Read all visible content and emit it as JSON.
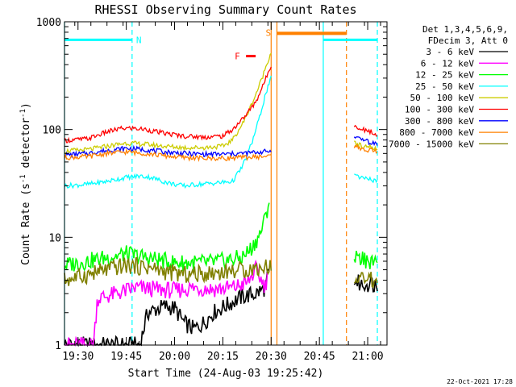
{
  "chart_data": {
    "type": "line",
    "title": "RHESSI Observing Summary Count Rates",
    "xlabel": "Start Time (24-Aug-03 19:25:42)",
    "ylabel": "Count Rate (s",
    "ylabel_sup1": "-1",
    "ylabel_mid": " detector",
    "ylabel_sup2": "-1",
    "ylabel_end": ")",
    "yscale": "log",
    "ylim": [
      1,
      1000
    ],
    "xlim": [
      19.43,
      21.1
    ],
    "y_ticks": [
      {
        "value": 1,
        "label": "1"
      },
      {
        "value": 10,
        "label": "10"
      },
      {
        "value": 100,
        "label": "100"
      },
      {
        "value": 1000,
        "label": "1000"
      }
    ],
    "x_ticks": [
      {
        "value": 19.5,
        "label": "19:30"
      },
      {
        "value": 19.75,
        "label": "19:45"
      },
      {
        "value": 20.0,
        "label": "20:00"
      },
      {
        "value": 20.25,
        "label": "20:15"
      },
      {
        "value": 20.5,
        "label": "20:30"
      },
      {
        "value": 20.75,
        "label": "20:45"
      },
      {
        "value": 21.0,
        "label": "21:00"
      }
    ],
    "legend_header": [
      "Det 1,3,4,5,6,9,",
      "FDecim 3, Att 0"
    ],
    "series": [
      {
        "name": "3 - 6 keV",
        "label": "3 - 6 keV",
        "color": "#000000",
        "points": [
          [
            19.43,
            1.0
          ],
          [
            19.82,
            1.0
          ],
          [
            19.86,
            2.0
          ],
          [
            19.95,
            2.3
          ],
          [
            20.0,
            2.2
          ],
          [
            20.05,
            1.6
          ],
          [
            20.1,
            1.4
          ],
          [
            20.15,
            1.6
          ],
          [
            20.2,
            2.0
          ],
          [
            20.28,
            2.4
          ],
          [
            20.35,
            2.8
          ],
          [
            20.42,
            3.0
          ],
          [
            20.47,
            3.4
          ],
          [
            20.485,
            4.5
          ]
        ],
        "points_b": [
          [
            20.93,
            4.0
          ],
          [
            20.97,
            3.6
          ],
          [
            21.02,
            3.8
          ],
          [
            21.05,
            3.5
          ]
        ]
      },
      {
        "name": "6 - 12 keV",
        "label": "6 - 12 keV",
        "color": "#ff00ff",
        "points": [
          [
            19.43,
            1.0
          ],
          [
            19.58,
            1.0
          ],
          [
            19.6,
            2.7
          ],
          [
            19.7,
            3.0
          ],
          [
            19.8,
            3.4
          ],
          [
            19.9,
            3.3
          ],
          [
            20.0,
            3.2
          ],
          [
            20.1,
            3.4
          ],
          [
            20.2,
            3.3
          ],
          [
            20.3,
            3.4
          ],
          [
            20.38,
            3.8
          ],
          [
            20.42,
            5.0
          ],
          [
            20.45,
            4.0
          ],
          [
            20.47,
            3.5
          ],
          [
            20.48,
            4.2
          ]
        ],
        "points_b": []
      },
      {
        "name": "12 - 25 keV",
        "label": "12 - 25 keV",
        "color": "#00ff00",
        "points": [
          [
            19.43,
            5.5
          ],
          [
            19.55,
            6.0
          ],
          [
            19.65,
            6.5
          ],
          [
            19.75,
            7.0
          ],
          [
            19.85,
            6.5
          ],
          [
            20.0,
            5.8
          ],
          [
            20.15,
            5.8
          ],
          [
            20.25,
            6.0
          ],
          [
            20.35,
            6.5
          ],
          [
            20.4,
            8.0
          ],
          [
            20.44,
            10.5
          ],
          [
            20.47,
            15
          ],
          [
            20.49,
            22
          ]
        ],
        "points_b": [
          [
            20.93,
            6.5
          ],
          [
            20.97,
            6.2
          ],
          [
            21.02,
            6.0
          ],
          [
            21.05,
            6.0
          ]
        ]
      },
      {
        "name": "25 - 50 keV",
        "label": "25 - 50 keV",
        "color": "#00ffff",
        "points": [
          [
            19.43,
            30
          ],
          [
            19.55,
            31
          ],
          [
            19.65,
            33
          ],
          [
            19.75,
            36
          ],
          [
            19.82,
            37
          ],
          [
            19.88,
            36
          ],
          [
            19.94,
            33
          ],
          [
            20.0,
            31
          ],
          [
            20.05,
            30
          ],
          [
            20.12,
            31
          ],
          [
            20.22,
            32
          ],
          [
            20.3,
            33
          ],
          [
            20.35,
            45
          ],
          [
            20.4,
            75
          ],
          [
            20.44,
            130
          ],
          [
            20.47,
            210
          ],
          [
            20.5,
            300
          ]
        ],
        "points_b": [
          [
            20.93,
            37
          ],
          [
            20.97,
            35
          ],
          [
            21.02,
            34
          ],
          [
            21.05,
            33
          ]
        ]
      },
      {
        "name": "50 - 100 keV",
        "label": "50 - 100 keV",
        "color": "#cccc00",
        "points": [
          [
            19.43,
            63
          ],
          [
            19.55,
            65
          ],
          [
            19.65,
            70
          ],
          [
            19.75,
            75
          ],
          [
            19.85,
            73
          ],
          [
            19.95,
            70
          ],
          [
            20.05,
            68
          ],
          [
            20.15,
            68
          ],
          [
            20.25,
            70
          ],
          [
            20.3,
            80
          ],
          [
            20.36,
            120
          ],
          [
            20.41,
            190
          ],
          [
            20.45,
            290
          ],
          [
            20.48,
            420
          ],
          [
            20.5,
            520
          ]
        ],
        "points_b": [
          [
            20.93,
            75
          ],
          [
            20.97,
            70
          ],
          [
            21.02,
            68
          ],
          [
            21.05,
            66
          ]
        ]
      },
      {
        "name": "100 - 300 keV",
        "label": "100 - 300 keV",
        "color": "#ff0000",
        "points": [
          [
            19.43,
            79
          ],
          [
            19.55,
            82
          ],
          [
            19.65,
            95
          ],
          [
            19.72,
            102
          ],
          [
            19.78,
            103
          ],
          [
            19.85,
            100
          ],
          [
            19.95,
            92
          ],
          [
            20.05,
            87
          ],
          [
            20.15,
            85
          ],
          [
            20.25,
            87
          ],
          [
            20.3,
            100
          ],
          [
            20.36,
            130
          ],
          [
            20.42,
            180
          ],
          [
            20.46,
            260
          ],
          [
            20.49,
            360
          ],
          [
            20.5,
            400
          ]
        ],
        "points_b": [
          [
            20.93,
            105
          ],
          [
            20.97,
            100
          ],
          [
            21.02,
            95
          ],
          [
            21.05,
            90
          ]
        ]
      },
      {
        "name": "300 - 800 keV",
        "label": "300 - 800 keV",
        "color": "#0000ff",
        "points": [
          [
            19.43,
            58
          ],
          [
            19.55,
            60
          ],
          [
            19.65,
            64
          ],
          [
            19.75,
            67
          ],
          [
            19.85,
            65
          ],
          [
            19.95,
            62
          ],
          [
            20.05,
            60
          ],
          [
            20.15,
            59
          ],
          [
            20.25,
            59
          ],
          [
            20.35,
            60
          ],
          [
            20.45,
            62
          ],
          [
            20.5,
            63
          ]
        ],
        "points_b": [
          [
            20.93,
            85
          ],
          [
            20.97,
            80
          ],
          [
            21.02,
            75
          ],
          [
            21.05,
            72
          ]
        ]
      },
      {
        "name": "800 - 7000 keV",
        "label": "800 - 7000 keV",
        "color": "#ff8000",
        "points": [
          [
            19.43,
            55
          ],
          [
            19.55,
            56
          ],
          [
            19.65,
            60
          ],
          [
            19.75,
            62
          ],
          [
            19.85,
            60
          ],
          [
            19.95,
            57
          ],
          [
            20.05,
            55
          ],
          [
            20.15,
            54
          ],
          [
            20.25,
            54
          ],
          [
            20.35,
            55
          ],
          [
            20.45,
            56
          ],
          [
            20.5,
            57
          ]
        ],
        "points_b": [
          [
            20.93,
            70
          ],
          [
            20.97,
            66
          ],
          [
            21.02,
            64
          ],
          [
            21.05,
            63
          ]
        ]
      },
      {
        "name": "7000 - 15000 keV",
        "label": "7000 - 15000 keV",
        "color": "#808000",
        "points": [
          [
            19.43,
            4.0
          ],
          [
            19.55,
            4.5
          ],
          [
            19.65,
            5.0
          ],
          [
            19.75,
            5.5
          ],
          [
            19.85,
            5.3
          ],
          [
            19.95,
            4.8
          ],
          [
            20.05,
            4.5
          ],
          [
            20.15,
            4.6
          ],
          [
            20.25,
            4.8
          ],
          [
            20.35,
            5.0
          ],
          [
            20.45,
            5.2
          ],
          [
            20.5,
            5.5
          ]
        ],
        "points_b": [
          [
            20.93,
            4.5
          ],
          [
            20.97,
            4.2
          ],
          [
            21.02,
            4.0
          ],
          [
            21.05,
            3.8
          ]
        ]
      }
    ],
    "annotations": {
      "night_bars": [
        {
          "label": "N",
          "x_start": 19.43,
          "x_end": 19.78,
          "y": 680,
          "color": "#00ffff"
        },
        {
          "label": "",
          "x_start": 20.77,
          "x_end": 21.05,
          "y": 680,
          "color": "#00ffff"
        }
      ],
      "saa_bar": {
        "label": "S",
        "x_start": 20.53,
        "x_end": 20.89,
        "y": 780,
        "color": "#ff8000"
      },
      "flare_bar": {
        "label": "F",
        "x_start": 20.37,
        "x_end": 20.42,
        "y": 480,
        "color": "#ff0000"
      },
      "vlines": [
        {
          "x": 19.43,
          "color": "#00ffff",
          "style": "solid"
        },
        {
          "x": 19.78,
          "color": "#00ffff",
          "style": "dashed"
        },
        {
          "x": 20.5,
          "color": "#ff8000",
          "style": "solid"
        },
        {
          "x": 20.53,
          "color": "#ff8000",
          "style": "solid"
        },
        {
          "x": 20.77,
          "color": "#00ffff",
          "style": "solid"
        },
        {
          "x": 20.89,
          "color": "#ff8000",
          "style": "dashed"
        },
        {
          "x": 21.05,
          "color": "#00ffff",
          "style": "dashed"
        }
      ]
    },
    "footer": "22-Oct-2021 17:28"
  }
}
